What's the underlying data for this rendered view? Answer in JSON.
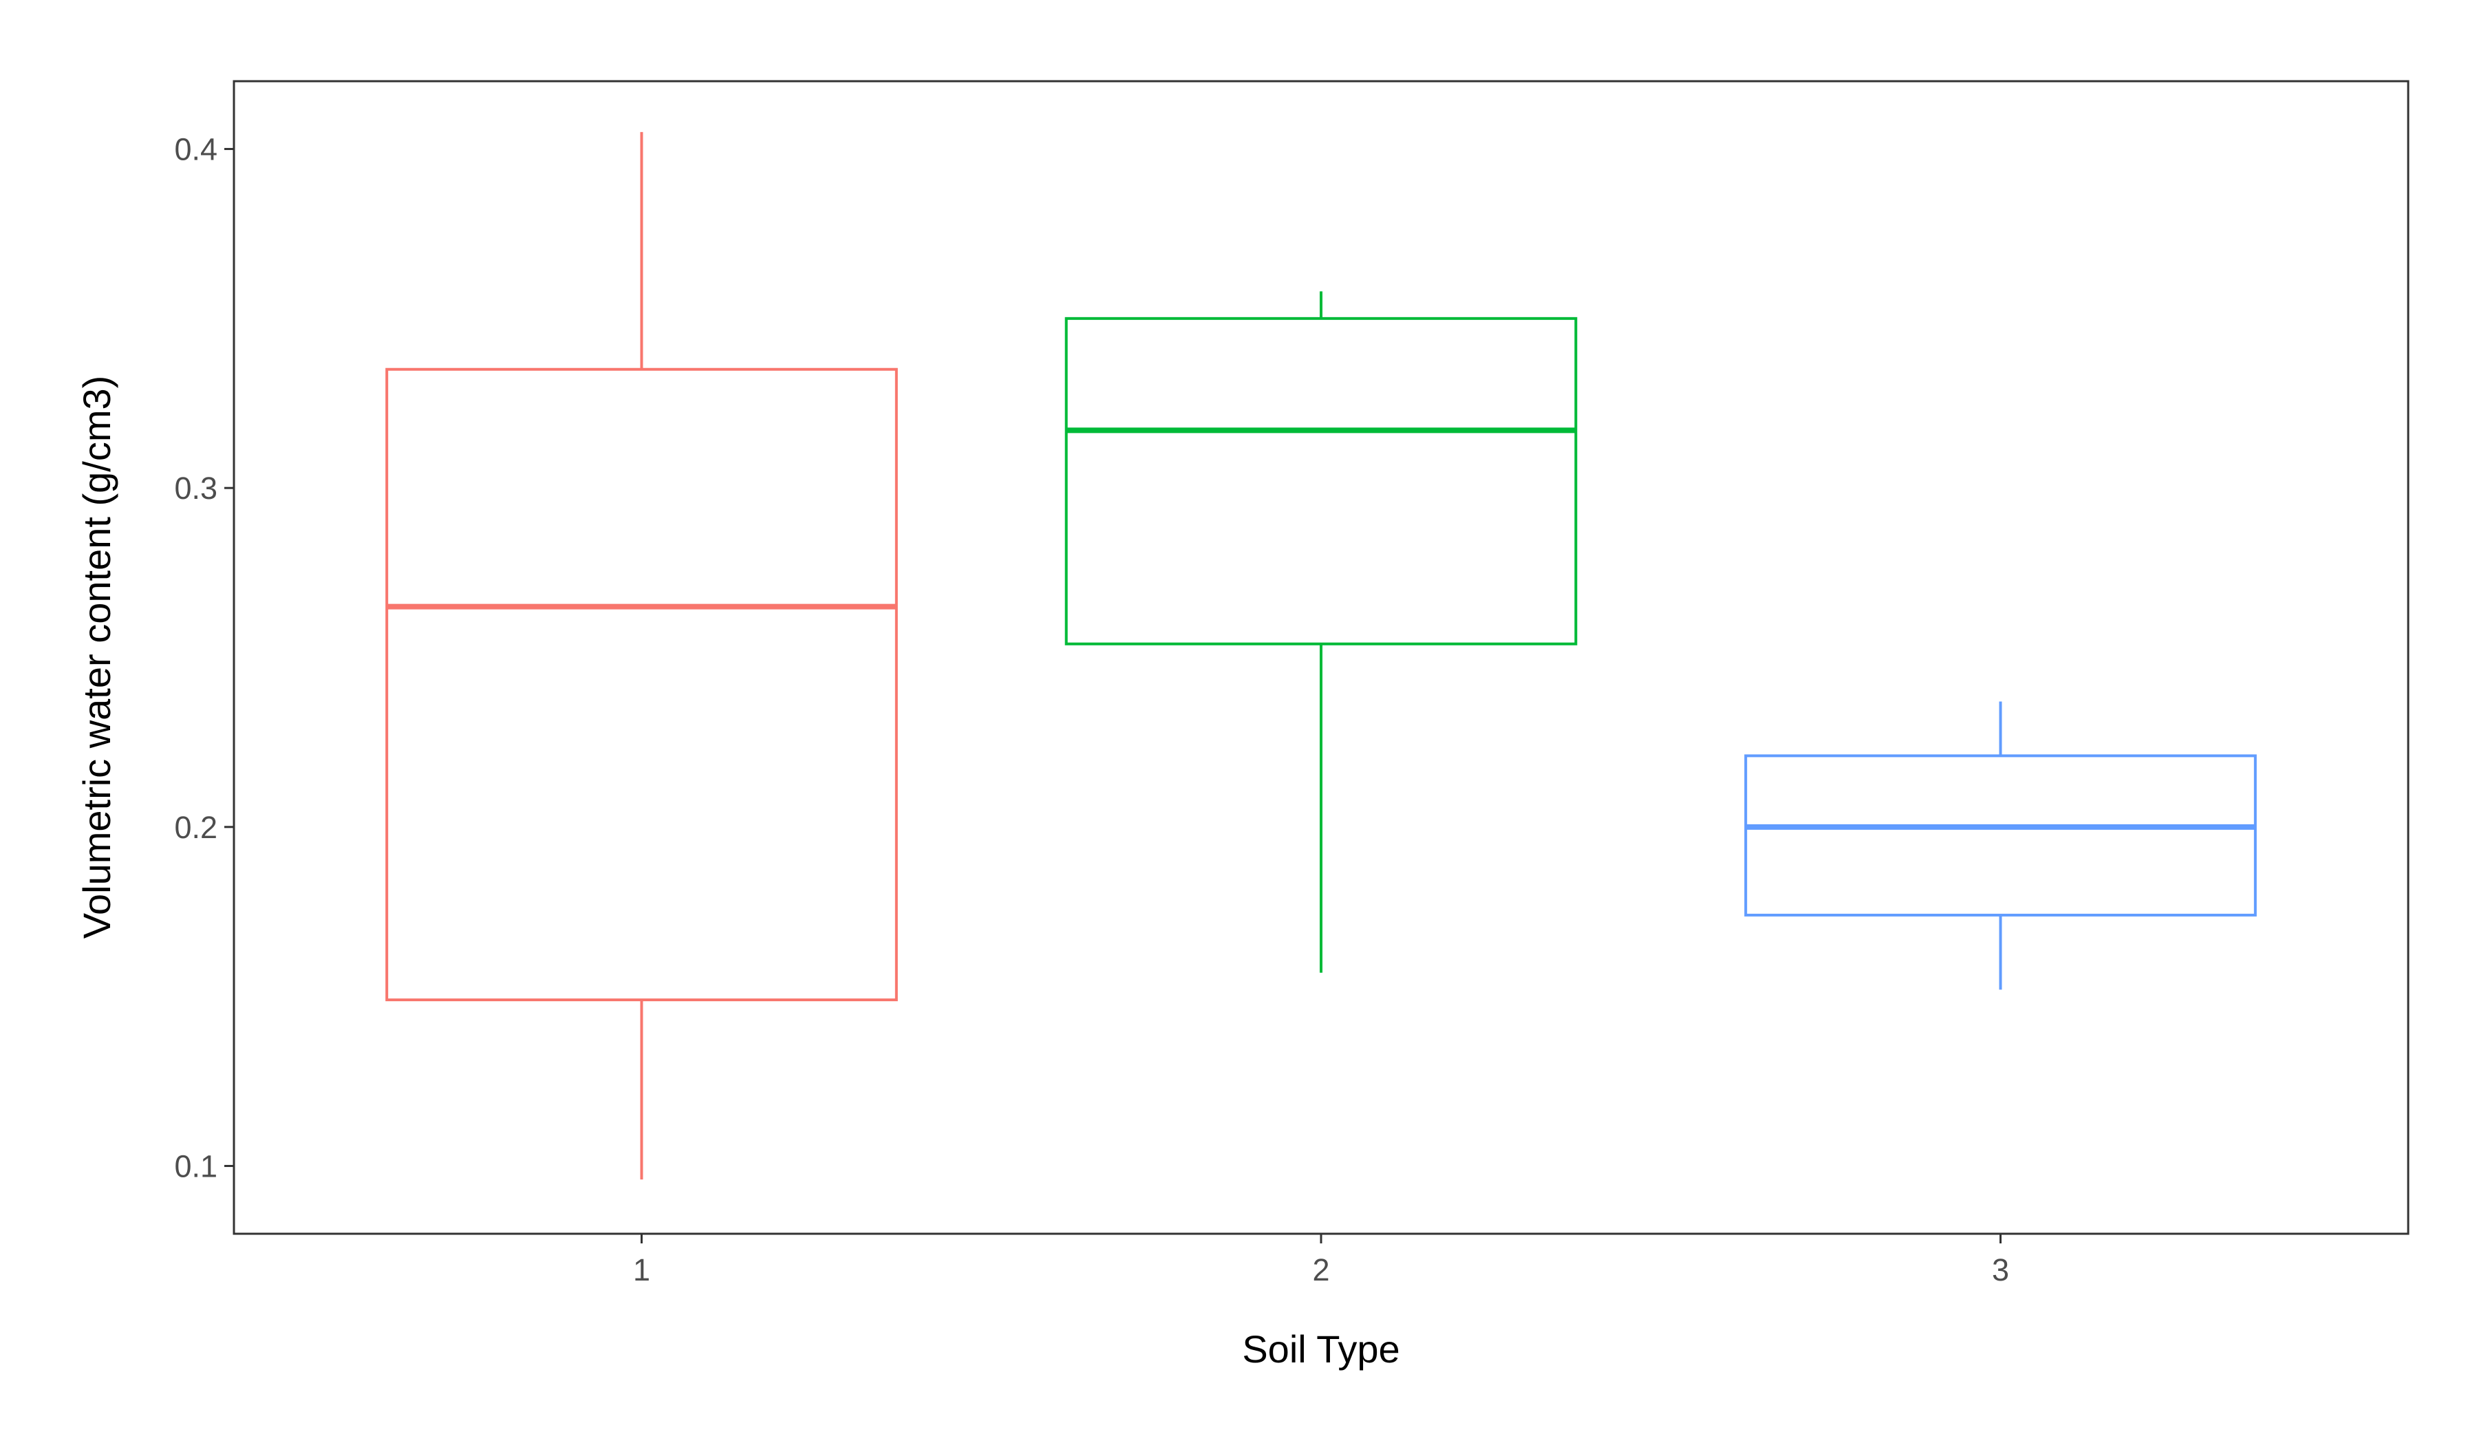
{
  "chart_data": {
    "type": "boxplot",
    "xlabel": "Soil Type",
    "ylabel": "Volumetric water content (g/cm3)",
    "categories": [
      "1",
      "2",
      "3"
    ],
    "ylim": [
      0.08,
      0.42
    ],
    "yticks": [
      0.1,
      0.2,
      0.3,
      0.4
    ],
    "ytick_labels": [
      "0.1",
      "0.2",
      "0.3",
      "0.4"
    ],
    "grid": false,
    "legend": "none",
    "boxes": [
      {
        "category": "1",
        "whisker_low": 0.096,
        "q1": 0.149,
        "median": 0.265,
        "q3": 0.335,
        "whisker_high": 0.405,
        "color": "#F8766D"
      },
      {
        "category": "2",
        "whisker_low": 0.157,
        "q1": 0.254,
        "median": 0.317,
        "q3": 0.35,
        "whisker_high": 0.358,
        "color": "#00BA38"
      },
      {
        "category": "3",
        "whisker_low": 0.152,
        "q1": 0.174,
        "median": 0.2,
        "q3": 0.221,
        "whisker_high": 0.237,
        "color": "#619CFF"
      }
    ]
  }
}
